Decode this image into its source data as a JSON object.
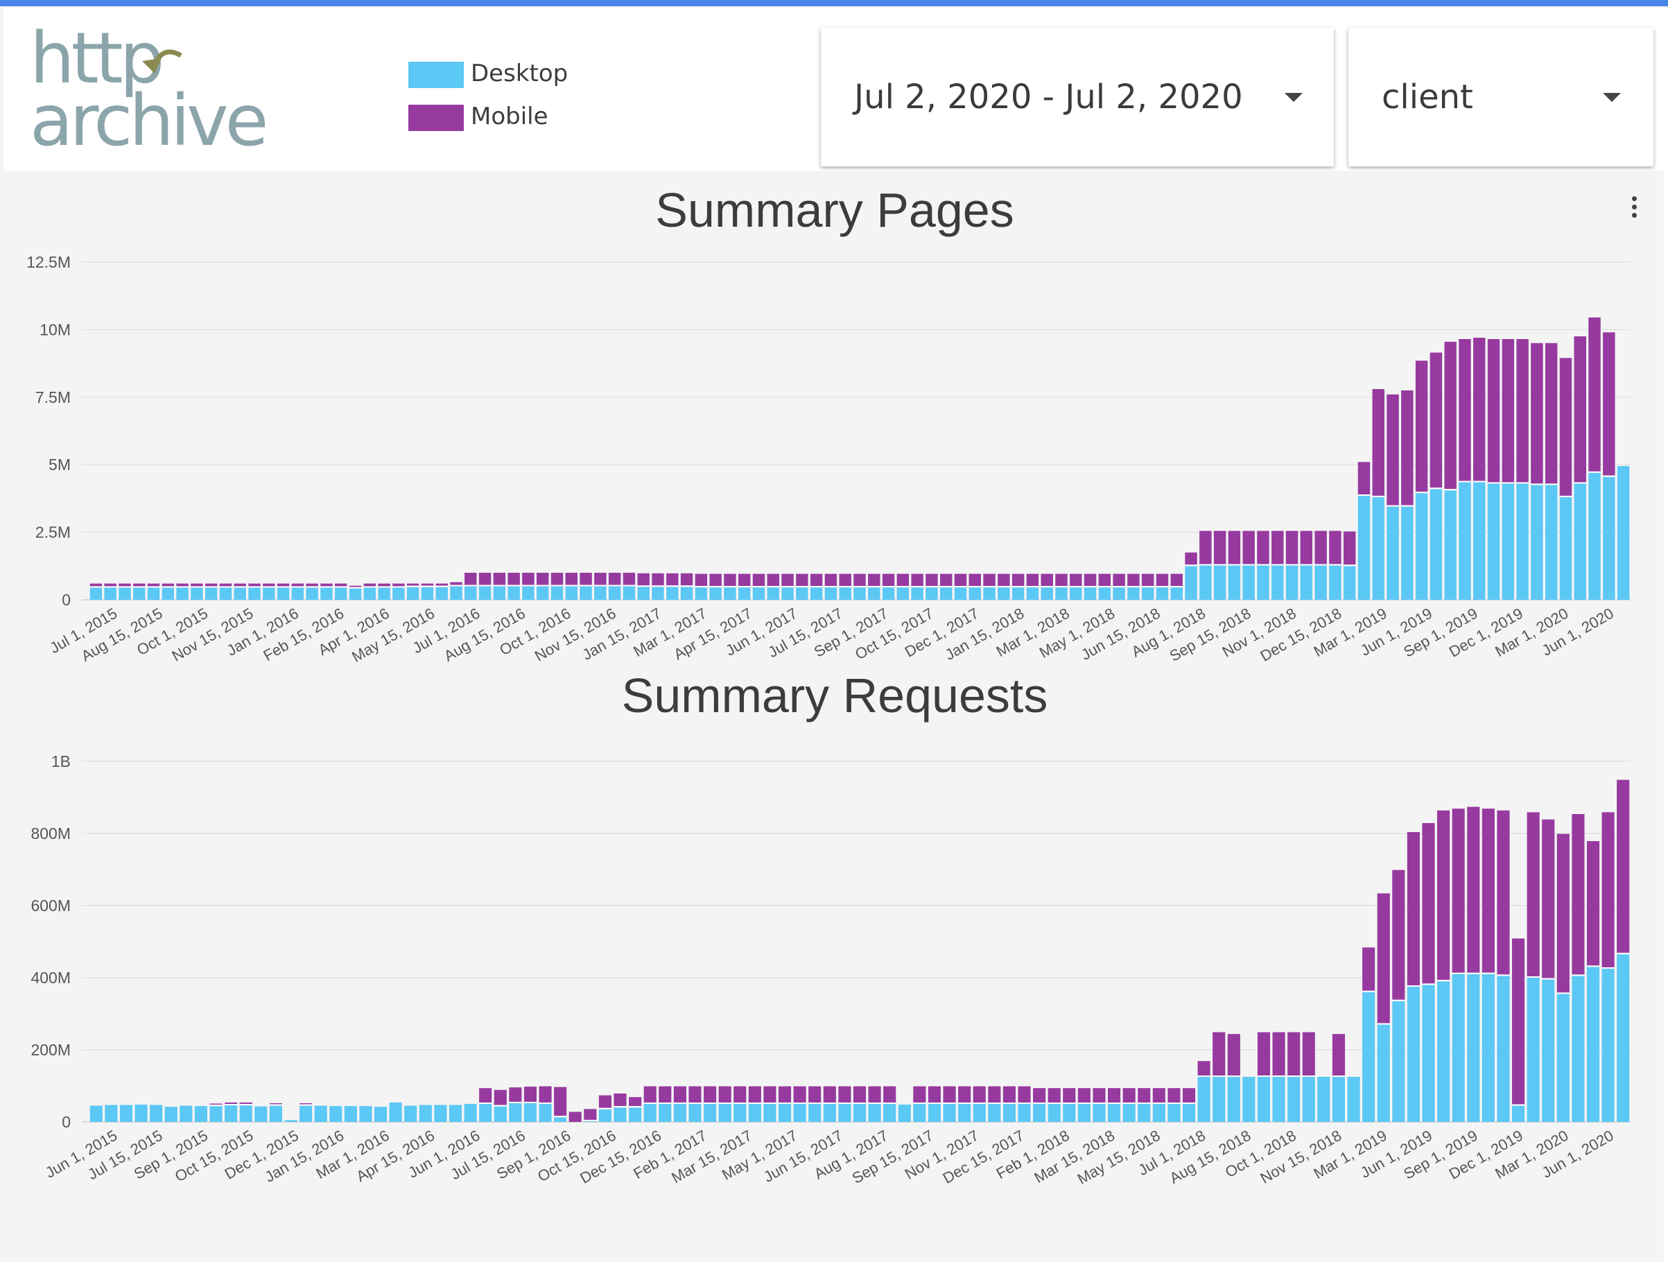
{
  "app": {
    "logo": {
      "line1": "http",
      "line2": "archive"
    },
    "legend": [
      {
        "label": "Desktop",
        "color": "#5bc8f5"
      },
      {
        "label": "Mobile",
        "color": "#973aa0"
      }
    ],
    "date_range": {
      "value": "Jul 2, 2020 - Jul 2, 2020",
      "icon": "dropdown-caret-icon"
    },
    "dimension": {
      "value": "client",
      "icon": "dropdown-caret-icon"
    },
    "menu_icon": "more-vert-icon"
  },
  "chart_data": [
    {
      "type": "bar",
      "stacked": true,
      "title": "Summary Pages",
      "xlabel": "",
      "ylabel": "",
      "ylim": [
        0,
        12500000
      ],
      "y_ticks": [
        "0",
        "2.5M",
        "5M",
        "7.5M",
        "10M",
        "12.5M"
      ],
      "grid": true,
      "x_tick_labels": [
        "Jul 1, 2015",
        "Aug 15, 2015",
        "Oct 1, 2015",
        "Nov 15, 2015",
        "Jan 1, 2016",
        "Feb 15, 2016",
        "Apr 1, 2016",
        "May 15, 2016",
        "Jul 1, 2016",
        "Aug 15, 2016",
        "Oct 1, 2016",
        "Nov 15, 2016",
        "Jan 15, 2017",
        "Mar 1, 2017",
        "Apr 15, 2017",
        "Jun 1, 2017",
        "Jul 15, 2017",
        "Sep 1, 2017",
        "Oct 15, 2017",
        "Dec 1, 2017",
        "Jan 15, 2018",
        "Mar 1, 2018",
        "May 1, 2018",
        "Jun 15, 2018",
        "Aug 1, 2018",
        "Sep 15, 2018",
        "Nov 1, 2018",
        "Dec 15, 2018",
        "Mar 1, 2019",
        "Jun 1, 2019",
        "Sep 1, 2019",
        "Dec 1, 2019",
        "Mar 1, 2020",
        "Jun 1, 2020"
      ],
      "series": [
        {
          "name": "Desktop",
          "color": "#5bc8f5",
          "values": [
            0.45,
            0.45,
            0.45,
            0.45,
            0.45,
            0.45,
            0.45,
            0.45,
            0.45,
            0.45,
            0.45,
            0.45,
            0.45,
            0.45,
            0.45,
            0.45,
            0.45,
            0.45,
            0.42,
            0.45,
            0.45,
            0.45,
            0.47,
            0.47,
            0.47,
            0.5,
            0.5,
            0.5,
            0.5,
            0.5,
            0.5,
            0.5,
            0.5,
            0.5,
            0.5,
            0.5,
            0.5,
            0.5,
            0.48,
            0.48,
            0.48,
            0.48,
            0.46,
            0.46,
            0.46,
            0.46,
            0.46,
            0.46,
            0.46,
            0.46,
            0.46,
            0.46,
            0.46,
            0.46,
            0.46,
            0.46,
            0.46,
            0.46,
            0.46,
            0.46,
            0.46,
            0.46,
            0.46,
            0.46,
            0.46,
            0.46,
            0.46,
            0.46,
            0.46,
            0.46,
            0.46,
            0.46,
            0.46,
            0.46,
            0.46,
            0.46,
            1.25,
            1.27,
            1.27,
            1.27,
            1.27,
            1.27,
            1.27,
            1.27,
            1.27,
            1.27,
            1.27,
            1.25,
            3.85,
            3.8,
            3.45,
            3.45,
            3.95,
            4.1,
            4.05,
            4.35,
            4.35,
            4.3,
            4.3,
            4.3,
            4.25,
            4.25,
            3.8,
            4.3,
            4.7,
            4.55,
            4.95
          ]
        },
        {
          "name": "Mobile",
          "color": "#973aa0",
          "values": [
            0.1,
            0.1,
            0.1,
            0.1,
            0.1,
            0.1,
            0.1,
            0.1,
            0.1,
            0.1,
            0.1,
            0.1,
            0.1,
            0.1,
            0.1,
            0.1,
            0.1,
            0.1,
            0.05,
            0.1,
            0.1,
            0.1,
            0.08,
            0.08,
            0.08,
            0.1,
            0.45,
            0.45,
            0.45,
            0.45,
            0.45,
            0.45,
            0.45,
            0.45,
            0.45,
            0.45,
            0.45,
            0.45,
            0.45,
            0.45,
            0.45,
            0.45,
            0.45,
            0.45,
            0.45,
            0.45,
            0.45,
            0.45,
            0.45,
            0.45,
            0.45,
            0.45,
            0.45,
            0.45,
            0.45,
            0.45,
            0.45,
            0.45,
            0.45,
            0.45,
            0.45,
            0.45,
            0.45,
            0.45,
            0.45,
            0.45,
            0.45,
            0.45,
            0.45,
            0.45,
            0.45,
            0.45,
            0.45,
            0.45,
            0.45,
            0.45,
            0.45,
            1.23,
            1.23,
            1.23,
            1.23,
            1.23,
            1.23,
            1.23,
            1.23,
            1.23,
            1.23,
            1.23,
            1.2,
            3.95,
            4.1,
            4.25,
            4.85,
            5.0,
            5.45,
            5.25,
            5.3,
            5.3,
            5.3,
            5.3,
            5.2,
            5.2,
            5.1,
            5.4,
            5.7,
            5.3,
            0.0
          ]
        }
      ]
    },
    {
      "type": "bar",
      "stacked": true,
      "title": "Summary Requests",
      "xlabel": "",
      "ylabel": "",
      "ylim": [
        0,
        1000000000
      ],
      "y_ticks": [
        "0",
        "200M",
        "400M",
        "600M",
        "800M",
        "1B"
      ],
      "grid": true,
      "x_tick_labels": [
        "Jun 1, 2015",
        "Jul 15, 2015",
        "Sep 1, 2015",
        "Oct 15, 2015",
        "Dec 1, 2015",
        "Jan 15, 2016",
        "Mar 1, 2016",
        "Apr 15, 2016",
        "Jun 1, 2016",
        "Jul 15, 2016",
        "Sep 1, 2016",
        "Oct 15, 2016",
        "Dec 15, 2016",
        "Feb 1, 2017",
        "Mar 15, 2017",
        "May 1, 2017",
        "Jun 15, 2017",
        "Aug 1, 2017",
        "Sep 15, 2017",
        "Nov 1, 2017",
        "Dec 15, 2017",
        "Feb 1, 2018",
        "Mar 15, 2018",
        "May 15, 2018",
        "Jul 1, 2018",
        "Aug 15, 2018",
        "Oct 1, 2018",
        "Nov 15, 2018",
        "Mar 1, 2019",
        "Jun 1, 2019",
        "Sep 1, 2019",
        "Dec 1, 2019",
        "Mar 1, 2020",
        "Jun 1, 2020"
      ],
      "series": [
        {
          "name": "Desktop",
          "color": "#5bc8f5",
          "values": [
            45,
            47,
            47,
            48,
            47,
            42,
            45,
            44,
            44,
            46,
            46,
            43,
            45,
            5,
            45,
            45,
            44,
            44,
            44,
            42,
            54,
            45,
            47,
            47,
            47,
            50,
            50,
            43,
            52,
            52,
            50,
            13,
            0,
            2,
            35,
            40,
            40,
            50,
            50,
            50,
            50,
            50,
            50,
            50,
            50,
            50,
            50,
            50,
            50,
            50,
            50,
            50,
            50,
            50,
            48,
            50,
            50,
            50,
            50,
            50,
            50,
            50,
            50,
            50,
            50,
            50,
            50,
            50,
            50,
            50,
            50,
            50,
            50,
            50,
            125,
            125,
            125,
            125,
            125,
            125,
            125,
            125,
            125,
            125,
            125,
            360,
            270,
            335,
            375,
            380,
            390,
            410,
            410,
            410,
            405,
            45,
            400,
            395,
            355,
            405,
            430,
            425,
            465
          ]
        },
        {
          "name": "Mobile",
          "color": "#973aa0",
          "values": [
            0,
            0,
            0,
            0,
            0,
            0,
            0,
            0,
            3,
            4,
            4,
            0,
            3,
            0,
            3,
            0,
            0,
            0,
            0,
            0,
            0,
            0,
            0,
            0,
            0,
            0,
            40,
            42,
            40,
            42,
            45,
            80,
            28,
            30,
            35,
            35,
            25,
            45,
            45,
            45,
            45,
            45,
            45,
            45,
            45,
            45,
            45,
            45,
            45,
            45,
            45,
            45,
            45,
            45,
            0,
            45,
            45,
            45,
            45,
            45,
            45,
            45,
            45,
            40,
            40,
            40,
            40,
            40,
            40,
            40,
            40,
            40,
            40,
            40,
            40,
            120,
            115,
            0,
            120,
            120,
            120,
            120,
            0,
            115,
            0,
            120,
            360,
            360,
            425,
            445,
            470,
            455,
            460,
            455,
            455,
            460,
            455,
            440,
            440,
            445,
            345,
            430,
            480,
            0
          ]
        }
      ]
    }
  ]
}
